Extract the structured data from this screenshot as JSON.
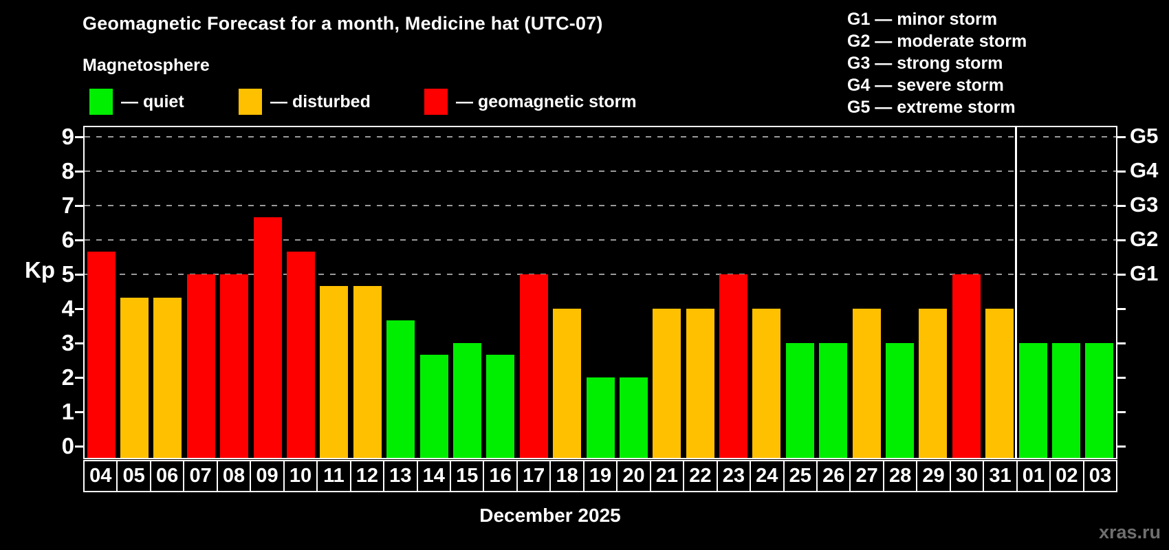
{
  "title": "Geomagnetic Forecast for a month, Medicine hat (UTC-07)",
  "subtitle": "Magnetosphere",
  "legend": {
    "items": [
      {
        "key": "quiet",
        "label": "— quiet",
        "color": "#00ee00"
      },
      {
        "key": "disturbed",
        "label": "— disturbed",
        "color": "#ffc000"
      },
      {
        "key": "storm",
        "label": "— geomagnetic storm",
        "color": "#ff0000"
      }
    ]
  },
  "storm_scale_legend": [
    {
      "label": "G1 — minor storm"
    },
    {
      "label": "G2 — moderate storm"
    },
    {
      "label": "G3 — strong storm"
    },
    {
      "label": "G4 — severe storm"
    },
    {
      "label": "G5 — extreme storm"
    }
  ],
  "chart_data": {
    "type": "bar",
    "title": "Geomagnetic Forecast for a month, Medicine hat (UTC-07)",
    "ylabel": "Kp",
    "xlabel": "December 2025",
    "ylim": [
      0,
      9
    ],
    "y_ticks": [
      0,
      1,
      2,
      3,
      4,
      5,
      6,
      7,
      8,
      9
    ],
    "gridlines_at": [
      5,
      6,
      7,
      8,
      9
    ],
    "grid": "dashed",
    "legend_position": "top-left",
    "right_axis": {
      "labels": [
        "G1",
        "G2",
        "G3",
        "G4",
        "G5"
      ],
      "at_kp": [
        5,
        6,
        7,
        8,
        9
      ]
    },
    "categories": [
      "04",
      "05",
      "06",
      "07",
      "08",
      "09",
      "10",
      "11",
      "12",
      "13",
      "14",
      "15",
      "16",
      "17",
      "18",
      "19",
      "20",
      "21",
      "22",
      "23",
      "24",
      "25",
      "26",
      "27",
      "28",
      "29",
      "30",
      "31",
      "01",
      "02",
      "03"
    ],
    "values": [
      5.67,
      4.33,
      4.33,
      5,
      5,
      6.67,
      5.67,
      4.67,
      4.67,
      3.67,
      2.67,
      3,
      2.67,
      5,
      4,
      2,
      2,
      4,
      4,
      5,
      4,
      3,
      3,
      4,
      3,
      4,
      5,
      4,
      3,
      3,
      3
    ],
    "statuses": [
      "storm",
      "disturbed",
      "disturbed",
      "storm",
      "storm",
      "storm",
      "storm",
      "disturbed",
      "disturbed",
      "quiet",
      "quiet",
      "quiet",
      "quiet",
      "storm",
      "disturbed",
      "quiet",
      "quiet",
      "disturbed",
      "disturbed",
      "storm",
      "disturbed",
      "quiet",
      "quiet",
      "disturbed",
      "quiet",
      "disturbed",
      "storm",
      "disturbed",
      "quiet",
      "quiet",
      "quiet"
    ],
    "series_colors": {
      "quiet": "#00ee00",
      "disturbed": "#ffc000",
      "storm": "#ff0000"
    },
    "month_separator_after_index": 27
  },
  "watermark": "xras.ru"
}
